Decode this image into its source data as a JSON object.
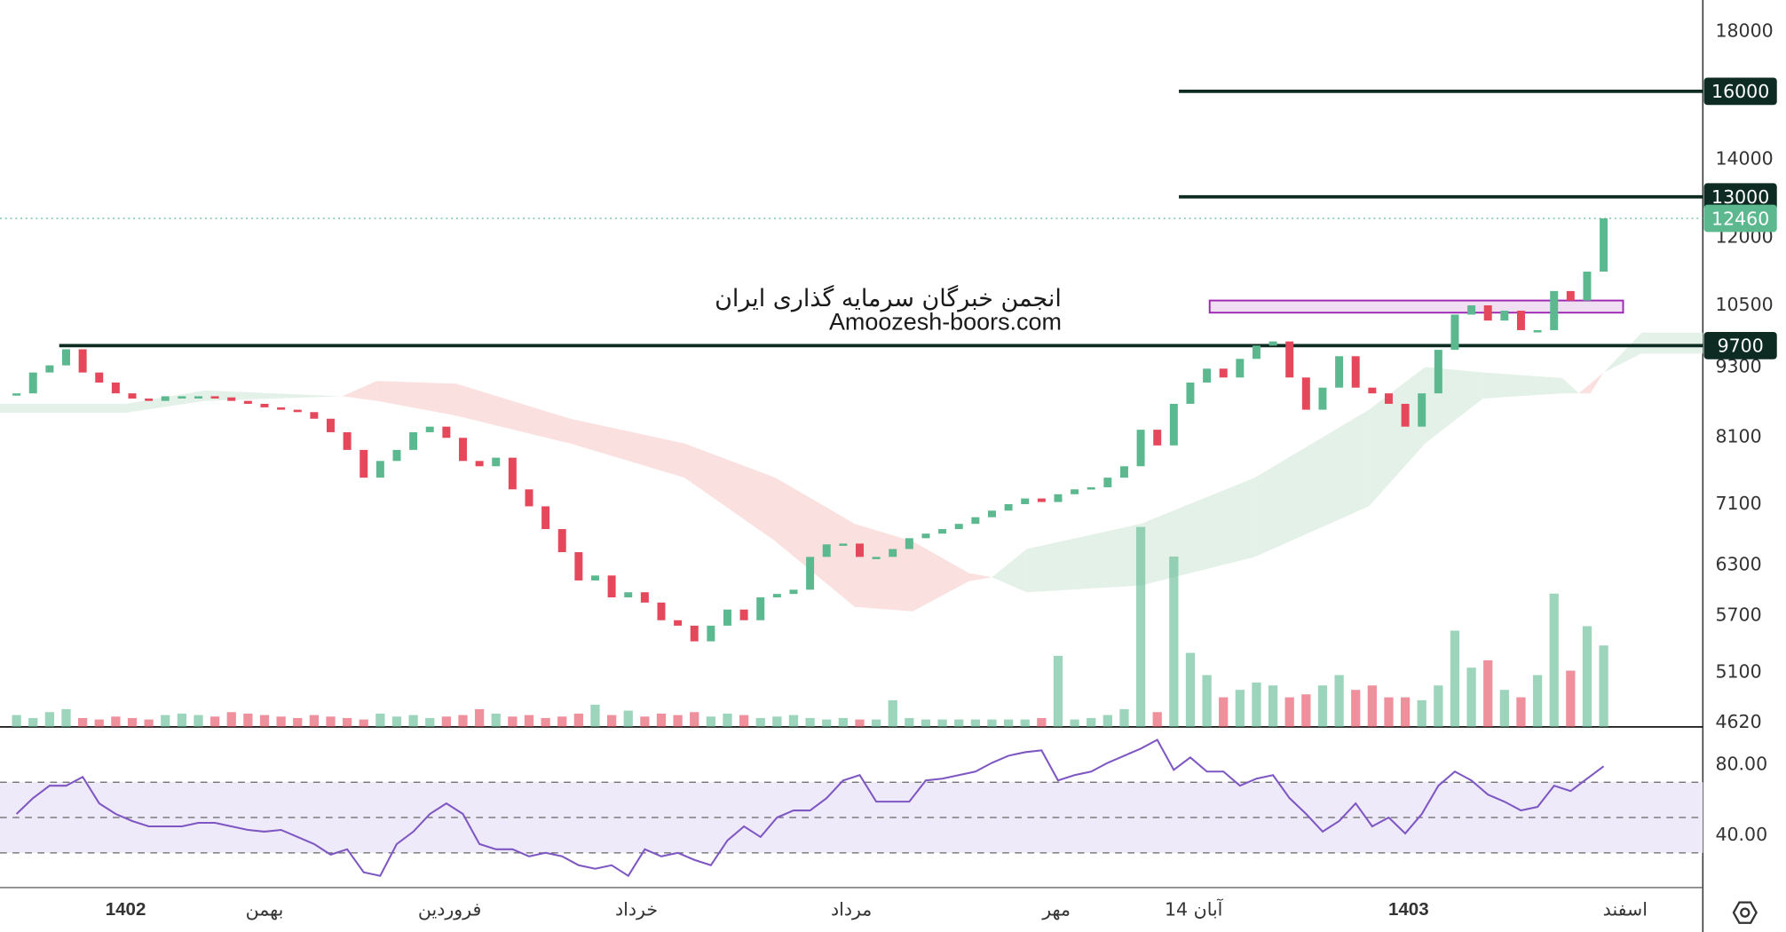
{
  "chart_data": [
    {
      "type": "candlestick",
      "annotations": [
        "انجمن خبرگان سرمایه گذاری ایران",
        "Amoozesh-boors.com"
      ],
      "xlim": [
        -1,
        102
      ],
      "xticks": [
        {
          "value": 6.6,
          "label": "1402"
        },
        {
          "value": 15,
          "label": "بهمن"
        },
        {
          "value": 26.2,
          "label": "فروردین"
        },
        {
          "value": 37.5,
          "label": "خرداد"
        },
        {
          "value": 50.5,
          "label": "مرداد"
        },
        {
          "value": 62.9,
          "label": "مهر"
        },
        {
          "value": 71.2,
          "label": "14 آبان"
        },
        {
          "value": 84.2,
          "label": "1403"
        },
        {
          "value": 97.3,
          "label": "اسفند"
        }
      ],
      "ylim": [
        4580,
        19150
      ],
      "log": true,
      "yticks": [
        18000,
        14000,
        12000,
        10500,
        9300,
        8100,
        7100,
        6300,
        5700,
        5100,
        4620
      ],
      "levels": [
        16000,
        13000,
        9700
      ],
      "last_price": 12460,
      "zone": [
        10350,
        10600
      ],
      "up_color": "#5cb98f",
      "down_color": "#e5485b",
      "level_color": "#0d2b22",
      "zone_color": "#9c27b0",
      "cloud_up_color": "#e4f1e8",
      "cloud_down_color": "#fbe0e0",
      "close": [
        8830,
        9200,
        9330,
        9630,
        9200,
        9020,
        8830,
        8740,
        8700,
        8780,
        8780,
        8780,
        8760,
        8700,
        8650,
        8590,
        8550,
        8510,
        8400,
        8180,
        7900,
        7480,
        7730,
        7900,
        8180,
        8270,
        8090,
        7730,
        7650,
        7780,
        7310,
        7070,
        6760,
        6460,
        6110,
        6170,
        5910,
        5970,
        5850,
        5650,
        5590,
        5420,
        5590,
        5770,
        5650,
        5910,
        5950,
        6000,
        6400,
        6560,
        6570,
        6400,
        6400,
        6500,
        6640,
        6700,
        6760,
        6830,
        6920,
        7010,
        7100,
        7180,
        7130,
        7240,
        7310,
        7340,
        7480,
        7650,
        8220,
        7970,
        8650,
        9020,
        9270,
        9110,
        9450,
        9700,
        9780,
        9110,
        8550,
        8930,
        9500,
        8930,
        8830,
        8650,
        8270,
        8830,
        9620,
        10310,
        10500,
        10190,
        10390,
        10000,
        10000,
        10800,
        10600,
        11220,
        12460
      ],
      "volume": [
        8,
        6,
        10,
        12,
        6,
        5,
        7,
        6,
        5,
        8,
        9,
        8,
        7,
        10,
        9,
        8,
        7,
        6,
        8,
        7,
        6,
        5,
        9,
        7,
        8,
        6,
        7,
        8,
        12,
        9,
        7,
        8,
        6,
        7,
        9,
        15,
        8,
        11,
        7,
        9,
        8,
        10,
        7,
        9,
        8,
        6,
        7,
        8,
        6,
        5,
        6,
        5,
        5,
        18,
        6,
        5,
        5,
        5,
        5,
        5,
        5,
        5,
        6,
        48,
        5,
        6,
        8,
        12,
        135,
        10,
        115,
        50,
        35,
        20,
        25,
        30,
        28,
        20,
        22,
        28,
        35,
        25,
        28,
        20,
        20,
        18,
        28,
        65,
        40,
        45,
        25,
        20,
        35,
        90,
        38,
        68,
        55
      ],
      "cloud": {
        "x": [
          -1,
          6.6,
          11.4,
          19.7,
          21.8,
          26.6,
          33.5,
          40.4,
          45.9,
          50.7,
          54.2,
          57.6,
          59,
          61.1,
          68,
          74.9,
          81.8,
          85.2,
          88.7,
          93.5,
          94.5,
          95.2,
          96,
          98.3,
          102
        ],
        "span_a": [
          8650,
          8650,
          8880,
          8780,
          8700,
          8450,
          8000,
          7480,
          6600,
          5800,
          5750,
          6100,
          6150,
          6500,
          6830,
          7480,
          8550,
          9300,
          9200,
          9100,
          8830,
          8830,
          9200,
          9950,
          9950
        ],
        "span_b": [
          8500,
          8500,
          8700,
          8780,
          9050,
          9000,
          8400,
          8000,
          7480,
          6830,
          6600,
          6200,
          6150,
          5970,
          6050,
          6400,
          7070,
          8000,
          8740,
          8830,
          8830,
          9000,
          9200,
          9550,
          9550
        ]
      }
    },
    {
      "type": "line",
      "ylim": [
        11,
        100
      ],
      "yticks": [
        {
          "value": 80,
          "label": "80.00"
        },
        {
          "value": 40,
          "label": "40.00"
        }
      ],
      "levels": [
        30,
        50,
        70
      ],
      "color": "#7e57c2",
      "band_color": "#efeafa",
      "values": [
        52,
        61,
        68,
        68,
        73,
        58,
        52,
        48,
        45,
        45,
        45,
        47,
        47,
        45,
        43,
        42,
        43,
        39,
        35,
        29,
        32,
        19,
        17,
        35,
        42,
        52,
        58,
        52,
        35,
        32,
        32,
        28,
        30,
        28,
        23,
        21,
        23,
        17,
        32,
        28,
        30,
        26,
        23,
        37,
        45,
        39,
        50,
        54,
        54,
        61,
        71,
        74,
        59,
        59,
        59,
        71,
        72,
        74,
        76,
        81,
        85,
        87,
        88,
        71,
        74,
        76,
        81,
        85,
        89,
        94,
        77,
        84,
        76,
        76,
        68,
        72,
        74,
        61,
        52,
        42,
        48,
        58,
        45,
        50,
        41,
        52,
        68,
        76,
        71,
        63,
        59,
        54,
        56,
        68,
        65,
        72,
        79
      ]
    }
  ]
}
